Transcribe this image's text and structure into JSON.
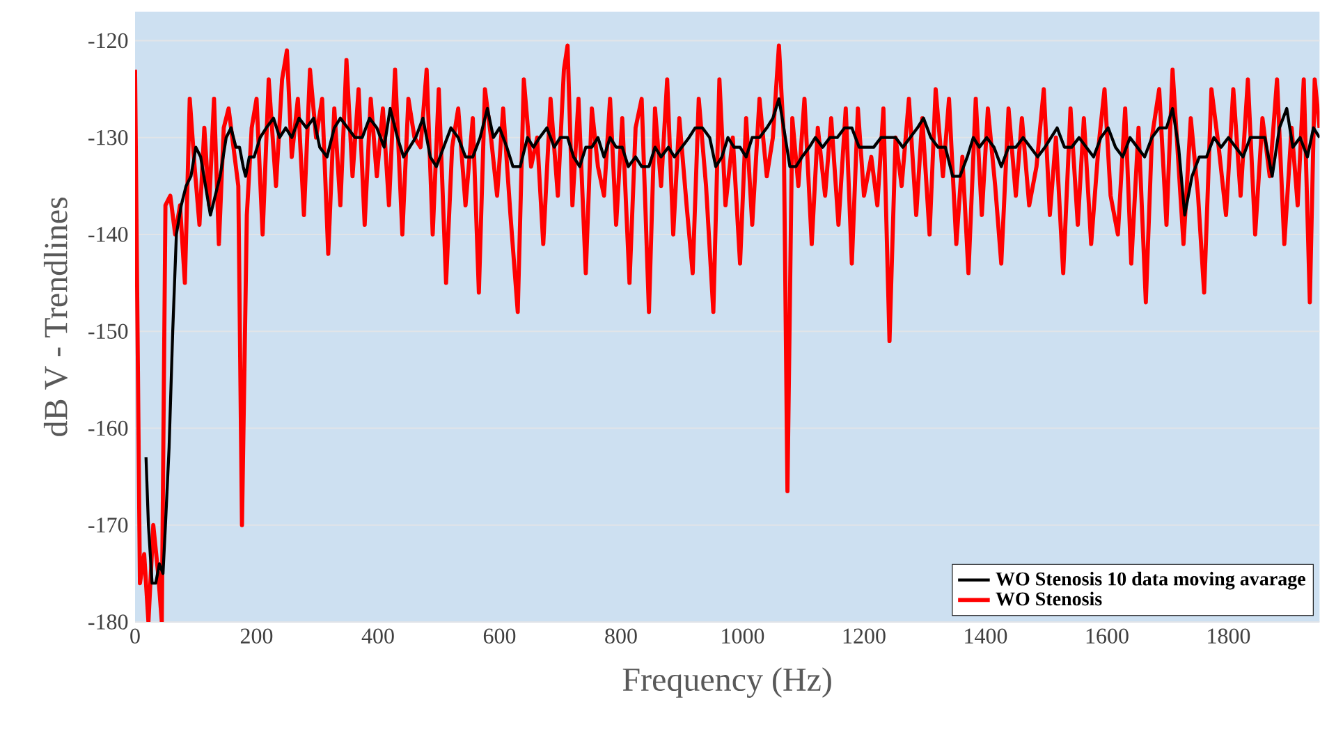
{
  "chart_data": {
    "type": "line",
    "xlabel": "Frequency (Hz)",
    "ylabel": "dB V - Trendlines",
    "xlim": [
      0,
      1950
    ],
    "ylim": [
      -180,
      -117
    ],
    "xticks": [
      0,
      200,
      400,
      600,
      800,
      1000,
      1200,
      1400,
      1600,
      1800
    ],
    "yticks": [
      -180,
      -170,
      -160,
      -150,
      -140,
      -130,
      -120
    ],
    "grid": "y",
    "legend": "bottom right",
    "line_style": "solid",
    "marker": "none",
    "series": [
      {
        "name": "WO Stenosis",
        "color": "#ff0000",
        "x": [
          0,
          8,
          15,
          22,
          30,
          38,
          44,
          50,
          58,
          66,
          74,
          82,
          90,
          98,
          106,
          114,
          122,
          130,
          138,
          146,
          154,
          162,
          170,
          176,
          184,
          192,
          200,
          210,
          220,
          232,
          242,
          250,
          258,
          268,
          278,
          288,
          298,
          308,
          318,
          328,
          338,
          348,
          358,
          368,
          378,
          388,
          398,
          408,
          418,
          428,
          440,
          450,
          460,
          470,
          480,
          490,
          500,
          512,
          522,
          532,
          544,
          556,
          566,
          576,
          586,
          596,
          606,
          618,
          630,
          640,
          652,
          662,
          672,
          684,
          696,
          706,
          712,
          720,
          730,
          742,
          752,
          762,
          772,
          782,
          792,
          802,
          814,
          824,
          834,
          846,
          856,
          866,
          876,
          886,
          896,
          908,
          918,
          928,
          940,
          952,
          962,
          972,
          984,
          996,
          1006,
          1016,
          1028,
          1040,
          1050,
          1060,
          1068,
          1074,
          1082,
          1092,
          1102,
          1114,
          1124,
          1136,
          1146,
          1158,
          1170,
          1180,
          1190,
          1200,
          1212,
          1222,
          1232,
          1242,
          1252,
          1262,
          1274,
          1286,
          1296,
          1308,
          1318,
          1330,
          1340,
          1352,
          1362,
          1372,
          1384,
          1394,
          1404,
          1416,
          1426,
          1438,
          1450,
          1460,
          1472,
          1484,
          1496,
          1506,
          1516,
          1528,
          1540,
          1552,
          1562,
          1574,
          1586,
          1596,
          1606,
          1618,
          1630,
          1640,
          1652,
          1664,
          1674,
          1686,
          1698,
          1708,
          1718,
          1726,
          1738,
          1750,
          1760,
          1772,
          1784,
          1796,
          1808,
          1820,
          1832,
          1844,
          1856,
          1868,
          1880,
          1892,
          1904,
          1914,
          1924,
          1934,
          1942,
          1950
        ],
        "values": [
          -123,
          -176,
          -173,
          -180,
          -170,
          -175,
          -180,
          -137,
          -136,
          -140,
          -137,
          -145,
          -126,
          -133,
          -139,
          -129,
          -137,
          -126,
          -141,
          -129,
          -127,
          -131,
          -135,
          -170,
          -138,
          -129,
          -126,
          -140,
          -124,
          -135,
          -124,
          -121,
          -132,
          -126,
          -138,
          -123,
          -130,
          -126,
          -142,
          -127,
          -137,
          -122,
          -134,
          -125,
          -139,
          -126,
          -134,
          -127,
          -137,
          -123,
          -140,
          -126,
          -130,
          -131,
          -123,
          -140,
          -125,
          -145,
          -131,
          -127,
          -137,
          -128,
          -146,
          -125,
          -130,
          -136,
          -127,
          -138,
          -148,
          -124,
          -133,
          -130,
          -141,
          -126,
          -136,
          -123,
          -120.5,
          -137,
          -126,
          -144,
          -127,
          -133,
          -136,
          -126,
          -139,
          -128,
          -145,
          -129,
          -126,
          -148,
          -127,
          -135,
          -124,
          -140,
          -128,
          -137,
          -144,
          -126,
          -135,
          -148,
          -124,
          -137,
          -130,
          -143,
          -128,
          -139,
          -126,
          -134,
          -130,
          -120.5,
          -130,
          -166.5,
          -128,
          -135,
          -126,
          -141,
          -129,
          -136,
          -128,
          -139,
          -127,
          -143,
          -127,
          -136,
          -132,
          -137,
          -127,
          -151,
          -130,
          -135,
          -126,
          -138,
          -128,
          -140,
          -125,
          -134,
          -126,
          -141,
          -132,
          -144,
          -126,
          -138,
          -127,
          -135,
          -143,
          -127,
          -136,
          -128,
          -137,
          -133,
          -125,
          -138,
          -130,
          -144,
          -127,
          -139,
          -128,
          -141,
          -131,
          -125,
          -136,
          -140,
          -127,
          -143,
          -129,
          -147,
          -130,
          -125,
          -139,
          -123,
          -133,
          -141,
          -128,
          -136,
          -146,
          -125,
          -131,
          -138,
          -125,
          -136,
          -124,
          -140,
          -128,
          -134,
          -124,
          -141,
          -129,
          -137,
          -124,
          -147,
          -124,
          -129
        ]
      },
      {
        "name": "WO Stenosis 10 data moving avarage",
        "color": "#000000",
        "x": [
          18,
          22,
          28,
          34,
          40,
          46,
          50,
          56,
          62,
          68,
          76,
          84,
          92,
          100,
          108,
          116,
          124,
          132,
          140,
          150,
          158,
          166,
          172,
          178,
          182,
          188,
          196,
          206,
          216,
          228,
          238,
          248,
          258,
          270,
          282,
          294,
          304,
          316,
          328,
          338,
          350,
          362,
          374,
          386,
          398,
          410,
          420,
          432,
          442,
          452,
          462,
          474,
          486,
          496,
          508,
          520,
          532,
          544,
          556,
          568,
          580,
          590,
          600,
          612,
          622,
          634,
          646,
          656,
          666,
          678,
          690,
          700,
          712,
          722,
          732,
          742,
          752,
          762,
          772,
          782,
          792,
          802,
          812,
          824,
          834,
          846,
          856,
          866,
          878,
          888,
          900,
          912,
          922,
          934,
          946,
          956,
          966,
          976,
          986,
          996,
          1006,
          1016,
          1028,
          1040,
          1050,
          1060,
          1068,
          1078,
          1088,
          1098,
          1110,
          1120,
          1132,
          1144,
          1156,
          1168,
          1180,
          1192,
          1204,
          1216,
          1228,
          1240,
          1252,
          1264,
          1276,
          1288,
          1298,
          1310,
          1322,
          1334,
          1346,
          1358,
          1370,
          1380,
          1390,
          1402,
          1414,
          1426,
          1438,
          1450,
          1462,
          1474,
          1486,
          1498,
          1508,
          1518,
          1530,
          1542,
          1554,
          1566,
          1578,
          1590,
          1602,
          1614,
          1626,
          1638,
          1650,
          1662,
          1674,
          1686,
          1698,
          1708,
          1718,
          1728,
          1740,
          1752,
          1764,
          1776,
          1788,
          1800,
          1812,
          1824,
          1836,
          1848,
          1860,
          1872,
          1884,
          1896,
          1906,
          1918,
          1930,
          1940,
          1950
        ],
        "values": [
          -163,
          -170,
          -176,
          -176,
          -174,
          -175,
          -170,
          -162,
          -150,
          -140,
          -137,
          -135,
          -134,
          -131,
          -132,
          -135,
          -138,
          -136,
          -134,
          -130,
          -129,
          -131,
          -131,
          -133,
          -134,
          -132,
          -132,
          -130,
          -129,
          -128,
          -130,
          -129,
          -130,
          -128,
          -129,
          -128,
          -131,
          -132,
          -129,
          -128,
          -129,
          -130,
          -130,
          -128,
          -129,
          -131,
          -127,
          -130,
          -132,
          -131,
          -130,
          -128,
          -132,
          -133,
          -131,
          -129,
          -130,
          -132,
          -132,
          -130,
          -127,
          -130,
          -129,
          -131,
          -133,
          -133,
          -130,
          -131,
          -130,
          -129,
          -131,
          -130,
          -130,
          -132,
          -133,
          -131,
          -131,
          -130,
          -132,
          -130,
          -131,
          -131,
          -133,
          -132,
          -133,
          -133,
          -131,
          -132,
          -131,
          -132,
          -131,
          -130,
          -129,
          -129,
          -130,
          -133,
          -132,
          -130,
          -131,
          -131,
          -132,
          -130,
          -130,
          -129,
          -128,
          -126,
          -129,
          -133,
          -133,
          -132,
          -131,
          -130,
          -131,
          -130,
          -130,
          -129,
          -129,
          -131,
          -131,
          -131,
          -130,
          -130,
          -130,
          -131,
          -130,
          -129,
          -128,
          -130,
          -131,
          -131,
          -134,
          -134,
          -132,
          -130,
          -131,
          -130,
          -131,
          -133,
          -131,
          -131,
          -130,
          -131,
          -132,
          -131,
          -130,
          -129,
          -131,
          -131,
          -130,
          -131,
          -132,
          -130,
          -129,
          -131,
          -132,
          -130,
          -131,
          -132,
          -130,
          -129,
          -129,
          -127,
          -131,
          -138,
          -134,
          -132,
          -132,
          -130,
          -131,
          -130,
          -131,
          -132,
          -130,
          -130,
          -130,
          -134,
          -129,
          -127,
          -131,
          -130,
          -132,
          -129,
          -130
        ]
      }
    ]
  }
}
